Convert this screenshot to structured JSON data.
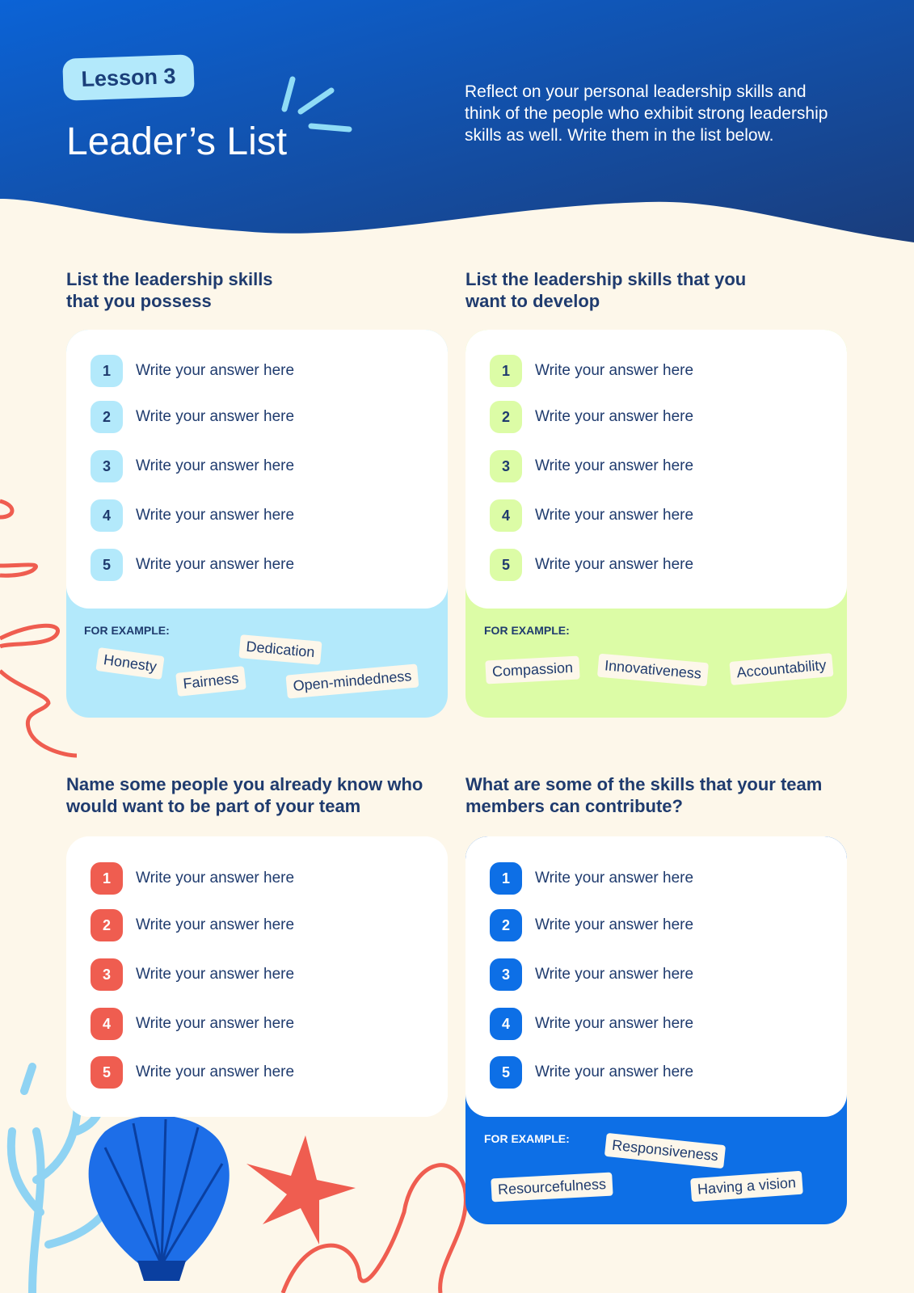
{
  "header": {
    "badge": "Lesson 3",
    "title": "Leader’s List",
    "description": "Reflect on your personal leadership skills and think of the people who exhibit strong leadership skills as well. Write them in the list below."
  },
  "sections": [
    {
      "title": "List the leadership skills that you possess",
      "items": [
        {
          "number": "1",
          "text": "Write your answer here"
        },
        {
          "number": "2",
          "text": "Write your answer here"
        },
        {
          "number": "3",
          "text": "Write your answer here"
        },
        {
          "number": "4",
          "text": "Write your answer here"
        },
        {
          "number": "5",
          "text": "Write your answer here"
        }
      ],
      "example_label": "FOR EXAMPLE:",
      "examples": [
        "Honesty",
        "Dedication",
        "Fairness",
        "Open-mindedness"
      ]
    },
    {
      "title": "List the leadership skills that you want to develop",
      "items": [
        {
          "number": "1",
          "text": "Write your answer here"
        },
        {
          "number": "2",
          "text": "Write your answer here"
        },
        {
          "number": "3",
          "text": "Write your answer here"
        },
        {
          "number": "4",
          "text": "Write your answer here"
        },
        {
          "number": "5",
          "text": "Write your answer here"
        }
      ],
      "example_label": "FOR EXAMPLE:",
      "examples": [
        "Compassion",
        "Innovativeness",
        "Accountability"
      ]
    },
    {
      "title": "Name some people you already know who would want to be part of your team",
      "items": [
        {
          "number": "1",
          "text": "Write your answer here"
        },
        {
          "number": "2",
          "text": "Write your answer here"
        },
        {
          "number": "3",
          "text": "Write your answer here"
        },
        {
          "number": "4",
          "text": "Write your answer here"
        },
        {
          "number": "5",
          "text": "Write your answer here"
        }
      ]
    },
    {
      "title": "What are some of the skills that your team members can contribute?",
      "items": [
        {
          "number": "1",
          "text": "Write your answer here"
        },
        {
          "number": "2",
          "text": "Write your answer here"
        },
        {
          "number": "3",
          "text": "Write your answer here"
        },
        {
          "number": "4",
          "text": "Write your answer here"
        },
        {
          "number": "5",
          "text": "Write your answer here"
        }
      ],
      "example_label": "FOR EXAMPLE:",
      "examples": [
        "Responsiveness",
        "Resourcefulness",
        "Having a vision"
      ]
    }
  ]
}
